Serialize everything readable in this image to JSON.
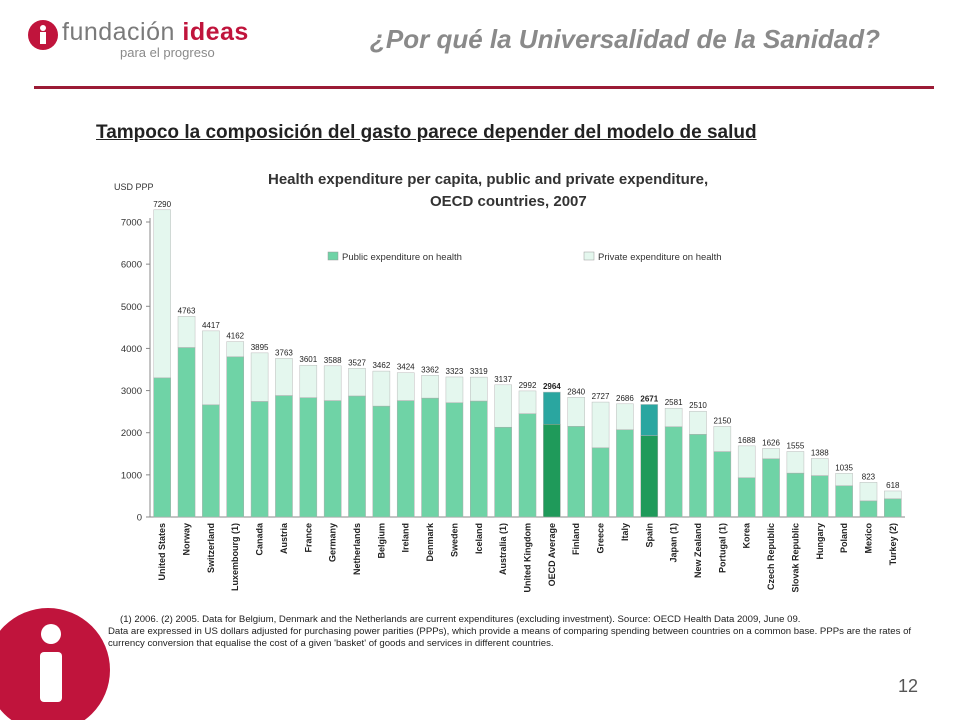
{
  "header": {
    "logo_main": "fundación",
    "logo_accent": "ideas",
    "logo_sub": "para el progreso",
    "title": "¿Por qué la Universalidad de la Sanidad?"
  },
  "slide": {
    "subtitle": "Tampoco la composición del gasto parece depender del modelo de salud",
    "page_number": "12"
  },
  "footnote": {
    "line1": "(1) 2006. (2) 2005. Data for Belgium, Denmark and the Netherlands are current expenditures (excluding investment). Source: OECD Health Data 2009, June 09.",
    "line2": "Data are expressed in US dollars adjusted for purchasing power parities (PPPs), which provide a means of comparing spending between countries on a common base. PPPs are the rates of currency conversion that equalise the cost of a given 'basket' of goods and services in different countries."
  },
  "colors": {
    "brand_red": "#c0143c",
    "rule": "#9b1b35",
    "public": "#6fd3a6",
    "private": "#e4f7ee",
    "public_highlight": "#1f9a5a",
    "private_highlight": "#2aa6a0"
  },
  "chart_data": {
    "type": "bar",
    "stacked": true,
    "title": "Health expenditure per capita, public and private expenditure,",
    "subtitle": "OECD countries, 2007",
    "ylabel": "USD PPP",
    "ylim": [
      0,
      7000
    ],
    "yticks": [
      0,
      1000,
      2000,
      3000,
      4000,
      5000,
      6000,
      7000
    ],
    "grid": false,
    "legend_position": "top",
    "categories": [
      "United States",
      "Norway",
      "Switzerland",
      "Luxembourg (1)",
      "Canada",
      "Austria",
      "France",
      "Germany",
      "Netherlands",
      "Belgium",
      "Ireland",
      "Denmark",
      "Sweden",
      "Iceland",
      "Australia (1)",
      "United Kingdom",
      "OECD Average",
      "Finland",
      "Greece",
      "Italy",
      "Spain",
      "Japan (1)",
      "New Zealand",
      "Portugal (1)",
      "Korea",
      "Czech Republic",
      "Slovak Republic",
      "Hungary",
      "Poland",
      "Mexico",
      "Turkey (2)"
    ],
    "highlight": [
      "OECD Average",
      "Spain"
    ],
    "totals": [
      7290,
      4763,
      4417,
      4162,
      3895,
      3763,
      3601,
      3588,
      3527,
      3462,
      3424,
      3362,
      3323,
      3319,
      3137,
      2992,
      2964,
      2840,
      2727,
      2686,
      2671,
      2581,
      2510,
      2150,
      1688,
      1626,
      1555,
      1388,
      1035,
      823,
      618
    ],
    "series": [
      {
        "name": "Public expenditure on health",
        "values": [
          3300,
          4020,
          2660,
          3800,
          2740,
          2880,
          2830,
          2760,
          2870,
          2630,
          2760,
          2820,
          2710,
          2750,
          2130,
          2450,
          2200,
          2150,
          1640,
          2070,
          1930,
          2140,
          1960,
          1550,
          930,
          1380,
          1040,
          980,
          740,
          380,
          430
        ]
      },
      {
        "name": "Private expenditure on health",
        "values": [
          3990,
          743,
          1757,
          362,
          1155,
          883,
          771,
          828,
          657,
          832,
          664,
          542,
          613,
          569,
          1007,
          542,
          764,
          690,
          1087,
          616,
          741,
          441,
          550,
          600,
          758,
          246,
          515,
          408,
          295,
          443,
          188
        ]
      }
    ]
  }
}
